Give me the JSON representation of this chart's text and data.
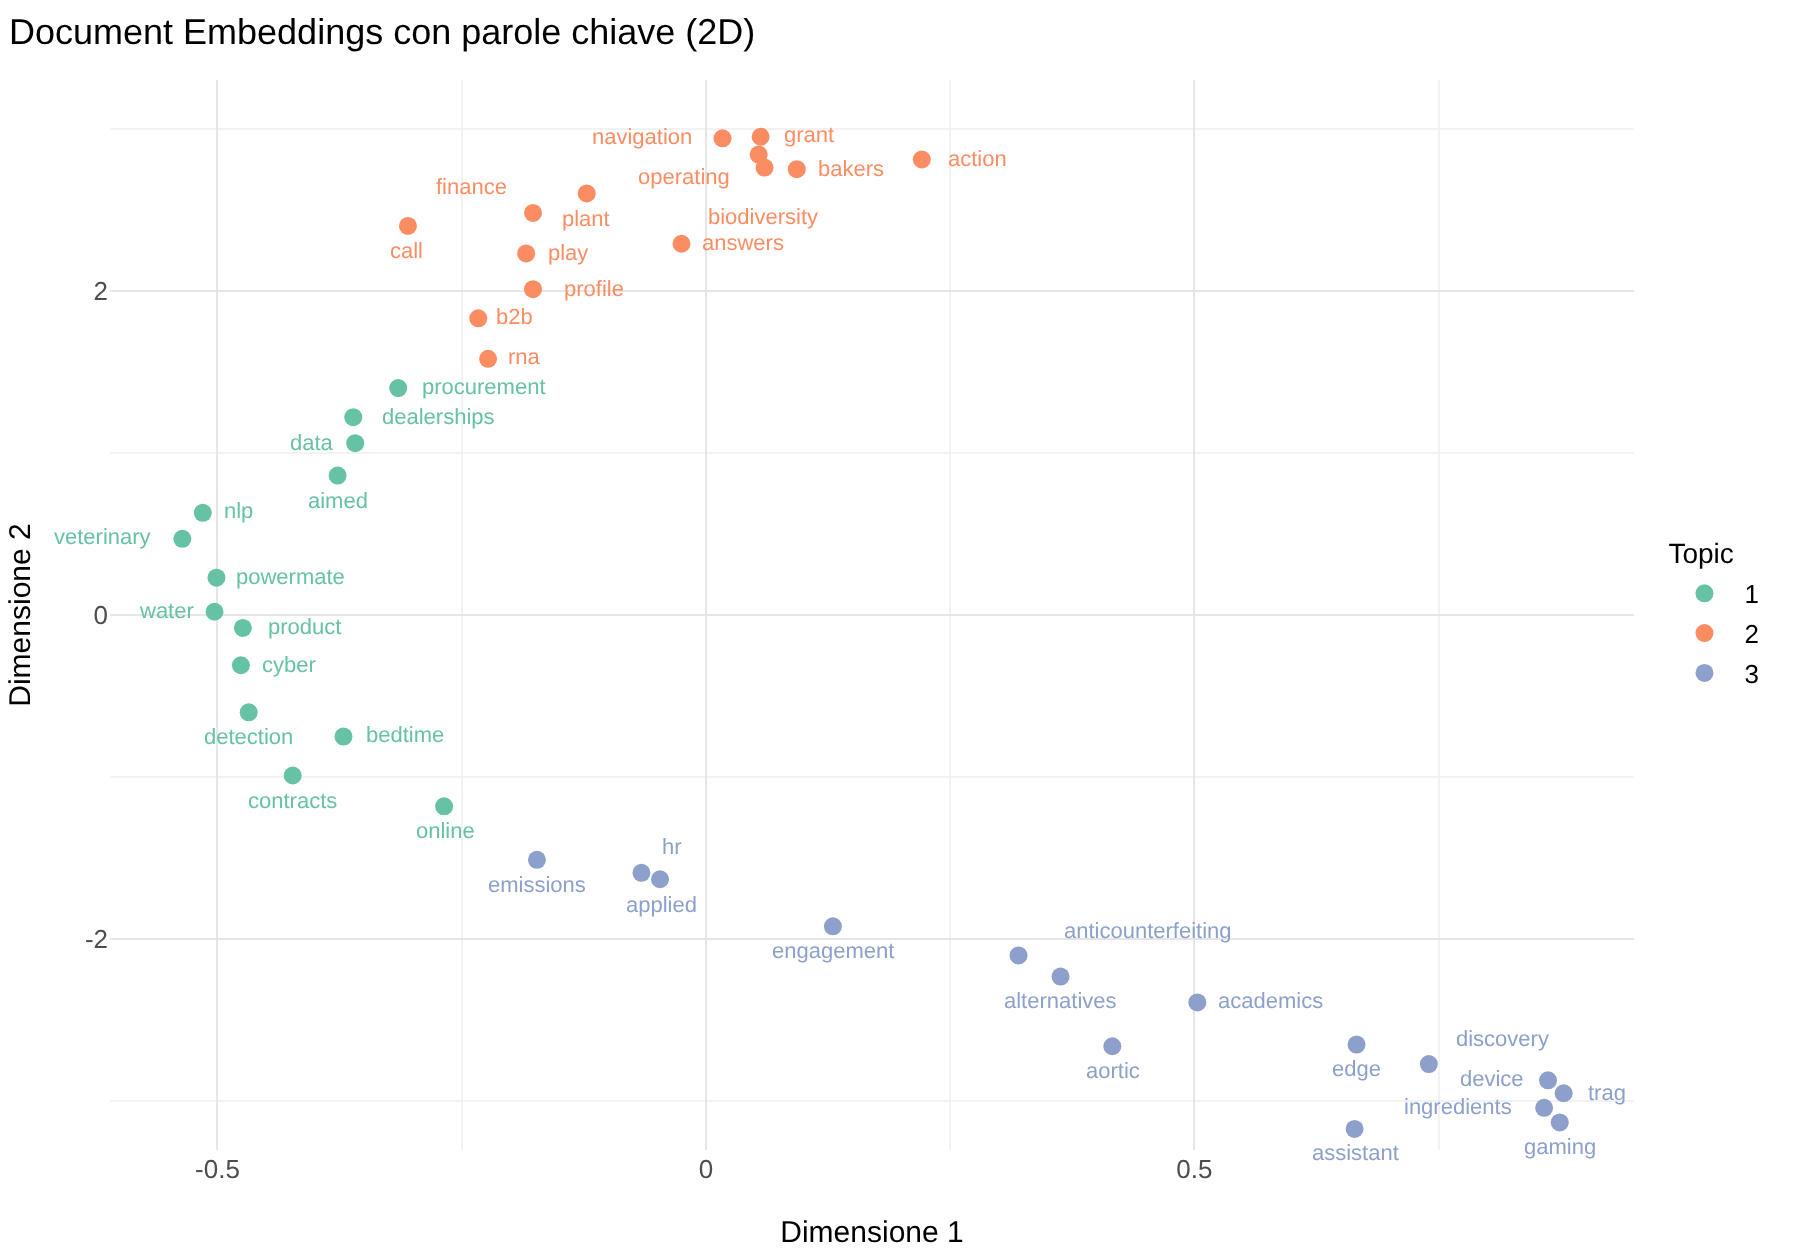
{
  "chart_data": {
    "type": "scatter",
    "title": "Document Embeddings con parole chiave (2D)",
    "xlabel": "Dimensione 1",
    "ylabel": "Dimensione 2",
    "legend_title": "Topic",
    "legend": "right",
    "grid": true,
    "marker": "circle",
    "xlim": [
      -0.61,
      0.95
    ],
    "ylim": [
      -3.3,
      3.3
    ],
    "xticks": [
      -0.5,
      0,
      0.5
    ],
    "yticks": [
      -2,
      0,
      2
    ],
    "series": [
      {
        "name": "1",
        "color": "#66c2a5",
        "x": [
          -0.315,
          -0.361,
          -0.359,
          -0.377,
          -0.515,
          -0.536,
          -0.501,
          -0.503,
          -0.474,
          -0.476,
          -0.468,
          -0.371,
          -0.423,
          -0.268
        ],
        "values": [
          1.4,
          1.22,
          1.06,
          0.86,
          0.63,
          0.47,
          0.23,
          0.02,
          -0.08,
          -0.31,
          -0.6,
          -0.75,
          -0.99,
          -1.18
        ],
        "value_labels": [
          "procurement",
          "dealerships",
          "data",
          "aimed",
          "nlp",
          "veterinary",
          "powermate",
          "water",
          "product",
          "cyber",
          "detection",
          "bedtime",
          "contracts",
          "online"
        ]
      },
      {
        "name": "2",
        "color": "#fc8d62",
        "x": [
          -0.305,
          -0.177,
          -0.184,
          -0.177,
          -0.233,
          -0.223,
          -0.122,
          -0.025,
          0.017,
          0.056,
          0.054,
          0.06,
          0.093,
          0.221
        ],
        "values": [
          2.4,
          2.48,
          2.23,
          2.01,
          1.83,
          1.58,
          2.6,
          2.29,
          2.94,
          2.95,
          2.84,
          2.76,
          2.75,
          2.81
        ],
        "value_labels": [
          "call",
          "finance",
          "play",
          "profile",
          "b2b",
          "rna",
          "plant",
          "answers",
          "navigation",
          "grant",
          "operating",
          "biodiversity",
          "bakers",
          "action"
        ]
      },
      {
        "name": "3",
        "color": "#8da0cb",
        "x": [
          -0.173,
          -0.066,
          -0.047,
          0.13,
          0.32,
          0.363,
          0.416,
          0.503,
          0.666,
          0.74,
          0.862,
          0.878,
          0.858,
          0.874,
          0.664
        ],
        "values": [
          -1.51,
          -1.59,
          -1.63,
          -1.92,
          -2.1,
          -2.23,
          -2.66,
          -2.39,
          -2.65,
          -2.77,
          -2.87,
          -2.95,
          -3.04,
          -3.13,
          -3.17
        ],
        "value_labels": [
          "emissions",
          "hr",
          "applied",
          "engagement",
          "anticounterfeiting",
          "alternatives",
          "aortic",
          "academics",
          "edge",
          "discovery",
          "device",
          "trag",
          "ingredients",
          "gaming",
          "assistant"
        ]
      }
    ]
  }
}
